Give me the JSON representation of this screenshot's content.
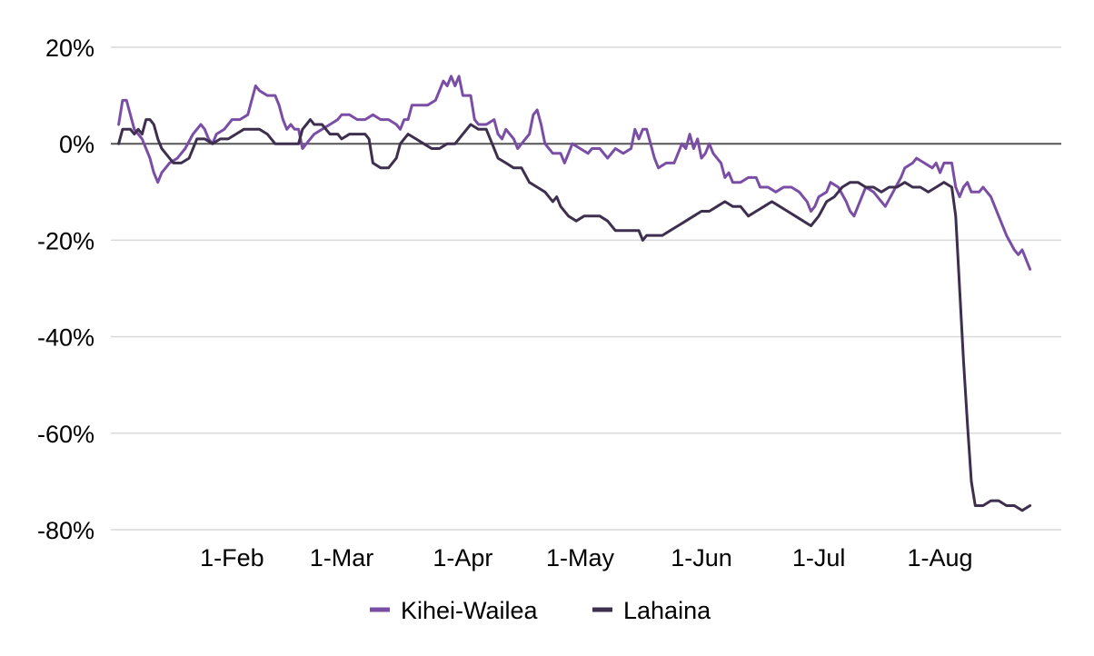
{
  "chart_data": {
    "type": "line",
    "title": "",
    "xlabel": "",
    "ylabel": "",
    "x_start": "1-Jan",
    "x_end": "31-Aug",
    "xlim": [
      "1-Jan",
      "31-Aug"
    ],
    "ylim": [
      -80,
      20
    ],
    "y_unit": "%",
    "y_ticks": [
      20,
      0,
      -20,
      -40,
      -60,
      -80
    ],
    "y_tick_labels": [
      "20%",
      "0%",
      "-20%",
      "-40%",
      "-60%",
      "-80%"
    ],
    "x_ticks": [
      "1-Feb",
      "1-Mar",
      "1-Apr",
      "1-May",
      "1-Jun",
      "1-Jul",
      "1-Aug"
    ],
    "x_tick_labels": [
      "1-Feb",
      "1-Mar",
      "1-Apr",
      "1-May",
      "1-Jun",
      "1-Jul",
      "1-Aug"
    ],
    "grid": true,
    "legend_position": "bottom",
    "series": [
      {
        "name": "Kihei-Wailea",
        "color": "#7b4ea6",
        "points": [
          [
            "3-Jan",
            4
          ],
          [
            "4-Jan",
            9
          ],
          [
            "5-Jan",
            9
          ],
          [
            "6-Jan",
            6
          ],
          [
            "7-Jan",
            3
          ],
          [
            "9-Jan",
            1
          ],
          [
            "11-Jan",
            -3
          ],
          [
            "12-Jan",
            -6
          ],
          [
            "13-Jan",
            -8
          ],
          [
            "14-Jan",
            -6
          ],
          [
            "16-Jan",
            -4
          ],
          [
            "18-Jan",
            -3
          ],
          [
            "20-Jan",
            -1
          ],
          [
            "22-Jan",
            2
          ],
          [
            "24-Jan",
            4
          ],
          [
            "25-Jan",
            3
          ],
          [
            "26-Jan",
            1
          ],
          [
            "27-Jan",
            0
          ],
          [
            "28-Jan",
            2
          ],
          [
            "30-Jan",
            3
          ],
          [
            "1-Feb",
            5
          ],
          [
            "3-Feb",
            5
          ],
          [
            "5-Feb",
            6
          ],
          [
            "6-Feb",
            9
          ],
          [
            "7-Feb",
            12
          ],
          [
            "8-Feb",
            11
          ],
          [
            "10-Feb",
            10
          ],
          [
            "12-Feb",
            10
          ],
          [
            "13-Feb",
            8
          ],
          [
            "14-Feb",
            5
          ],
          [
            "15-Feb",
            3
          ],
          [
            "16-Feb",
            4
          ],
          [
            "17-Feb",
            3
          ],
          [
            "18-Feb",
            3
          ],
          [
            "19-Feb",
            -1
          ],
          [
            "20-Feb",
            0
          ],
          [
            "22-Feb",
            2
          ],
          [
            "24-Feb",
            3
          ],
          [
            "26-Feb",
            4
          ],
          [
            "28-Feb",
            5
          ],
          [
            "1-Mar",
            6
          ],
          [
            "3-Mar",
            6
          ],
          [
            "5-Mar",
            5
          ],
          [
            "7-Mar",
            5
          ],
          [
            "9-Mar",
            6
          ],
          [
            "11-Mar",
            5
          ],
          [
            "13-Mar",
            5
          ],
          [
            "15-Mar",
            4
          ],
          [
            "16-Mar",
            3
          ],
          [
            "17-Mar",
            5
          ],
          [
            "18-Mar",
            5
          ],
          [
            "19-Mar",
            8
          ],
          [
            "21-Mar",
            8
          ],
          [
            "23-Mar",
            8
          ],
          [
            "25-Mar",
            9
          ],
          [
            "26-Mar",
            11
          ],
          [
            "27-Mar",
            13
          ],
          [
            "28-Mar",
            12
          ],
          [
            "29-Mar",
            14
          ],
          [
            "30-Mar",
            12
          ],
          [
            "31-Mar",
            14
          ],
          [
            "1-Apr",
            10
          ],
          [
            "2-Apr",
            10
          ],
          [
            "3-Apr",
            10
          ],
          [
            "4-Apr",
            5
          ],
          [
            "5-Apr",
            4
          ],
          [
            "7-Apr",
            4
          ],
          [
            "9-Apr",
            5
          ],
          [
            "10-Apr",
            2
          ],
          [
            "11-Apr",
            1
          ],
          [
            "12-Apr",
            3
          ],
          [
            "14-Apr",
            1
          ],
          [
            "15-Apr",
            -1
          ],
          [
            "16-Apr",
            0
          ],
          [
            "18-Apr",
            2
          ],
          [
            "19-Apr",
            6
          ],
          [
            "20-Apr",
            7
          ],
          [
            "21-Apr",
            4
          ],
          [
            "22-Apr",
            0
          ],
          [
            "24-Apr",
            -2
          ],
          [
            "26-Apr",
            -2
          ],
          [
            "27-Apr",
            -4
          ],
          [
            "29-Apr",
            0
          ],
          [
            "1-May",
            -1
          ],
          [
            "3-May",
            -2
          ],
          [
            "4-May",
            -1
          ],
          [
            "6-May",
            -1
          ],
          [
            "8-May",
            -3
          ],
          [
            "10-May",
            -1
          ],
          [
            "12-May",
            -2
          ],
          [
            "14-May",
            -1
          ],
          [
            "15-May",
            3
          ],
          [
            "16-May",
            1
          ],
          [
            "17-May",
            3
          ],
          [
            "18-May",
            3
          ],
          [
            "19-May",
            0
          ],
          [
            "20-May",
            -3
          ],
          [
            "21-May",
            -5
          ],
          [
            "23-May",
            -4
          ],
          [
            "25-May",
            -4
          ],
          [
            "26-May",
            -2
          ],
          [
            "27-May",
            0
          ],
          [
            "28-May",
            -1
          ],
          [
            "29-May",
            2
          ],
          [
            "30-May",
            -1
          ],
          [
            "31-May",
            1
          ],
          [
            "1-Jun",
            -3
          ],
          [
            "2-Jun",
            -2
          ],
          [
            "3-Jun",
            0
          ],
          [
            "4-Jun",
            -2
          ],
          [
            "6-Jun",
            -4
          ],
          [
            "7-Jun",
            -7
          ],
          [
            "8-Jun",
            -6
          ],
          [
            "9-Jun",
            -8
          ],
          [
            "11-Jun",
            -8
          ],
          [
            "13-Jun",
            -7
          ],
          [
            "15-Jun",
            -7
          ],
          [
            "16-Jun",
            -9
          ],
          [
            "18-Jun",
            -9
          ],
          [
            "20-Jun",
            -10
          ],
          [
            "22-Jun",
            -9
          ],
          [
            "24-Jun",
            -9
          ],
          [
            "26-Jun",
            -10
          ],
          [
            "28-Jun",
            -12
          ],
          [
            "29-Jun",
            -14
          ],
          [
            "30-Jun",
            -13
          ],
          [
            "1-Jul",
            -11
          ],
          [
            "3-Jul",
            -10
          ],
          [
            "4-Jul",
            -8
          ],
          [
            "6-Jul",
            -9
          ],
          [
            "8-Jul",
            -12
          ],
          [
            "9-Jul",
            -14
          ],
          [
            "10-Jul",
            -15
          ],
          [
            "12-Jul",
            -11
          ],
          [
            "13-Jul",
            -9
          ],
          [
            "15-Jul",
            -10
          ],
          [
            "17-Jul",
            -12
          ],
          [
            "18-Jul",
            -13
          ],
          [
            "20-Jul",
            -10
          ],
          [
            "22-Jul",
            -7
          ],
          [
            "23-Jul",
            -5
          ],
          [
            "25-Jul",
            -4
          ],
          [
            "26-Jul",
            -3
          ],
          [
            "28-Jul",
            -4
          ],
          [
            "30-Jul",
            -5
          ],
          [
            "31-Jul",
            -4
          ],
          [
            "1-Aug",
            -6
          ],
          [
            "2-Aug",
            -4
          ],
          [
            "4-Aug",
            -4
          ],
          [
            "5-Aug",
            -9
          ],
          [
            "6-Aug",
            -11
          ],
          [
            "7-Aug",
            -9
          ],
          [
            "8-Aug",
            -8
          ],
          [
            "9-Aug",
            -10
          ],
          [
            "11-Aug",
            -10
          ],
          [
            "12-Aug",
            -9
          ],
          [
            "14-Aug",
            -11
          ],
          [
            "16-Aug",
            -15
          ],
          [
            "18-Aug",
            -19
          ],
          [
            "20-Aug",
            -22
          ],
          [
            "21-Aug",
            -23
          ],
          [
            "22-Aug",
            -22
          ],
          [
            "24-Aug",
            -26
          ]
        ]
      },
      {
        "name": "Lahaina",
        "color": "#3d2f4d",
        "points": [
          [
            "3-Jan",
            0
          ],
          [
            "4-Jan",
            3
          ],
          [
            "5-Jan",
            3
          ],
          [
            "6-Jan",
            3
          ],
          [
            "7-Jan",
            2
          ],
          [
            "8-Jan",
            3
          ],
          [
            "9-Jan",
            2
          ],
          [
            "10-Jan",
            5
          ],
          [
            "11-Jan",
            5
          ],
          [
            "12-Jan",
            4
          ],
          [
            "13-Jan",
            1
          ],
          [
            "14-Jan",
            -1
          ],
          [
            "15-Jan",
            -2
          ],
          [
            "17-Jan",
            -4
          ],
          [
            "19-Jan",
            -4
          ],
          [
            "21-Jan",
            -3
          ],
          [
            "23-Jan",
            1
          ],
          [
            "25-Jan",
            1
          ],
          [
            "27-Jan",
            0
          ],
          [
            "29-Jan",
            1
          ],
          [
            "31-Jan",
            1
          ],
          [
            "2-Feb",
            2
          ],
          [
            "4-Feb",
            3
          ],
          [
            "6-Feb",
            3
          ],
          [
            "8-Feb",
            3
          ],
          [
            "10-Feb",
            2
          ],
          [
            "12-Feb",
            0
          ],
          [
            "14-Feb",
            0
          ],
          [
            "16-Feb",
            0
          ],
          [
            "18-Feb",
            0
          ],
          [
            "19-Feb",
            3
          ],
          [
            "20-Feb",
            4
          ],
          [
            "21-Feb",
            5
          ],
          [
            "22-Feb",
            4
          ],
          [
            "24-Feb",
            4
          ],
          [
            "26-Feb",
            2
          ],
          [
            "28-Feb",
            2
          ],
          [
            "1-Mar",
            1
          ],
          [
            "3-Mar",
            2
          ],
          [
            "5-Mar",
            2
          ],
          [
            "7-Mar",
            2
          ],
          [
            "8-Mar",
            1
          ],
          [
            "9-Mar",
            -4
          ],
          [
            "11-Mar",
            -5
          ],
          [
            "13-Mar",
            -5
          ],
          [
            "15-Mar",
            -3
          ],
          [
            "16-Mar",
            0
          ],
          [
            "17-Mar",
            1
          ],
          [
            "18-Mar",
            2
          ],
          [
            "20-Mar",
            1
          ],
          [
            "22-Mar",
            0
          ],
          [
            "24-Mar",
            -1
          ],
          [
            "26-Mar",
            -1
          ],
          [
            "28-Mar",
            0
          ],
          [
            "30-Mar",
            0
          ],
          [
            "1-Apr",
            2
          ],
          [
            "3-Apr",
            4
          ],
          [
            "5-Apr",
            3
          ],
          [
            "7-Apr",
            3
          ],
          [
            "8-Apr",
            1
          ],
          [
            "10-Apr",
            -3
          ],
          [
            "12-Apr",
            -4
          ],
          [
            "14-Apr",
            -5
          ],
          [
            "16-Apr",
            -5
          ],
          [
            "18-Apr",
            -8
          ],
          [
            "20-Apr",
            -9
          ],
          [
            "22-Apr",
            -10
          ],
          [
            "24-Apr",
            -12
          ],
          [
            "25-Apr",
            -11
          ],
          [
            "26-Apr",
            -13
          ],
          [
            "28-Apr",
            -15
          ],
          [
            "30-Apr",
            -16
          ],
          [
            "2-May",
            -15
          ],
          [
            "4-May",
            -15
          ],
          [
            "6-May",
            -15
          ],
          [
            "8-May",
            -16
          ],
          [
            "10-May",
            -18
          ],
          [
            "12-May",
            -18
          ],
          [
            "14-May",
            -18
          ],
          [
            "16-May",
            -18
          ],
          [
            "17-May",
            -20
          ],
          [
            "18-May",
            -19
          ],
          [
            "20-May",
            -19
          ],
          [
            "22-May",
            -19
          ],
          [
            "24-May",
            -18
          ],
          [
            "26-May",
            -17
          ],
          [
            "28-May",
            -16
          ],
          [
            "30-May",
            -15
          ],
          [
            "1-Jun",
            -14
          ],
          [
            "3-Jun",
            -14
          ],
          [
            "5-Jun",
            -13
          ],
          [
            "7-Jun",
            -12
          ],
          [
            "9-Jun",
            -13
          ],
          [
            "11-Jun",
            -13
          ],
          [
            "13-Jun",
            -15
          ],
          [
            "15-Jun",
            -14
          ],
          [
            "17-Jun",
            -13
          ],
          [
            "19-Jun",
            -12
          ],
          [
            "21-Jun",
            -13
          ],
          [
            "23-Jun",
            -14
          ],
          [
            "25-Jun",
            -15
          ],
          [
            "27-Jun",
            -16
          ],
          [
            "29-Jun",
            -17
          ],
          [
            "1-Jul",
            -15
          ],
          [
            "3-Jul",
            -12
          ],
          [
            "5-Jul",
            -11
          ],
          [
            "7-Jul",
            -9
          ],
          [
            "9-Jul",
            -8
          ],
          [
            "11-Jul",
            -8
          ],
          [
            "13-Jul",
            -9
          ],
          [
            "15-Jul",
            -9
          ],
          [
            "17-Jul",
            -10
          ],
          [
            "19-Jul",
            -9
          ],
          [
            "21-Jul",
            -9
          ],
          [
            "23-Jul",
            -8
          ],
          [
            "25-Jul",
            -9
          ],
          [
            "27-Jul",
            -9
          ],
          [
            "29-Jul",
            -10
          ],
          [
            "31-Jul",
            -9
          ],
          [
            "2-Aug",
            -8
          ],
          [
            "4-Aug",
            -9
          ],
          [
            "5-Aug",
            -15
          ],
          [
            "6-Aug",
            -30
          ],
          [
            "7-Aug",
            -45
          ],
          [
            "8-Aug",
            -58
          ],
          [
            "9-Aug",
            -70
          ],
          [
            "10-Aug",
            -75
          ],
          [
            "12-Aug",
            -75
          ],
          [
            "14-Aug",
            -74
          ],
          [
            "16-Aug",
            -74
          ],
          [
            "18-Aug",
            -75
          ],
          [
            "20-Aug",
            -75
          ],
          [
            "22-Aug",
            -76
          ],
          [
            "24-Aug",
            -75
          ]
        ]
      }
    ]
  }
}
